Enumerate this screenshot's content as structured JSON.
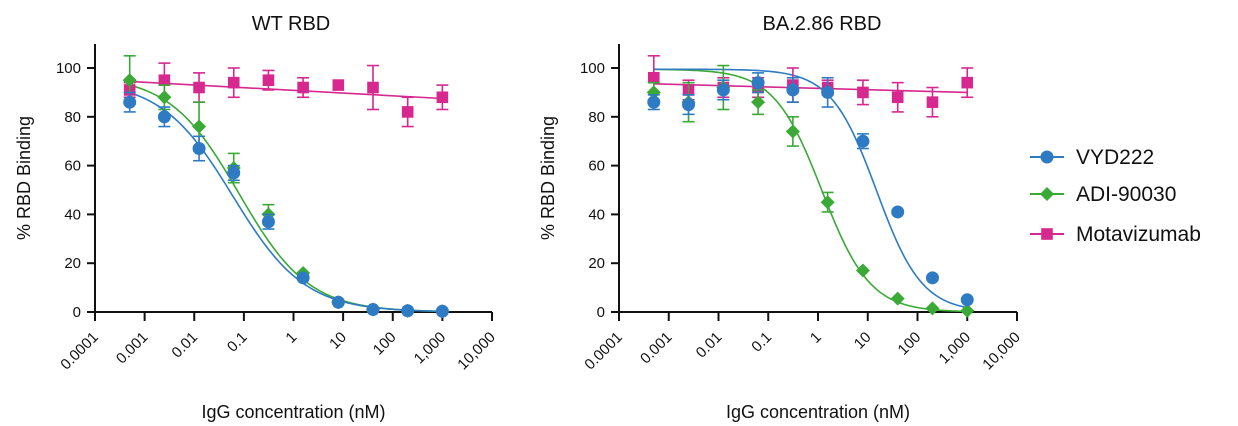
{
  "chart_data": [
    {
      "type": "scatter",
      "title": "WT RBD",
      "xlabel": "IgG concentration (nM)",
      "ylabel": "% RBD Binding",
      "xscale": "log",
      "xlim": [
        0.0001,
        10000
      ],
      "ylim": [
        0,
        110
      ],
      "xticks": [
        0.0001,
        0.001,
        0.01,
        0.1,
        1,
        10,
        100,
        1000,
        10000
      ],
      "xtick_labels": [
        "0.0001",
        "0.001",
        "0.01",
        "0.1",
        "1",
        "10",
        "100",
        "1,000",
        "10,000"
      ],
      "yticks": [
        0,
        20,
        40,
        60,
        80,
        100
      ],
      "ytick_labels": [
        "0",
        "20",
        "40",
        "60",
        "80",
        "100"
      ],
      "grid": false,
      "series": [
        {
          "name": "VYD222",
          "color": "#2e7bc4",
          "marker": "circle",
          "points": [
            {
              "x": 0.0005,
              "y": 86,
              "err": 4
            },
            {
              "x": 0.0025,
              "y": 80,
              "err": 4
            },
            {
              "x": 0.0125,
              "y": 67,
              "err": 5
            },
            {
              "x": 0.0625,
              "y": 57,
              "err": 3
            },
            {
              "x": 0.3125,
              "y": 37,
              "err": 3
            },
            {
              "x": 1.5625,
              "y": 14,
              "err": 1
            },
            {
              "x": 8,
              "y": 4,
              "err": 1
            },
            {
              "x": 40,
              "y": 1,
              "err": 0.5
            },
            {
              "x": 200,
              "y": 0.5,
              "err": 0.5
            },
            {
              "x": 1000,
              "y": 0.3,
              "err": 0.3
            }
          ],
          "fit": {
            "top": 95,
            "bottom": 0,
            "ic50": 0.06,
            "hill": 0.6
          }
        },
        {
          "name": "ADI-90030",
          "color": "#3aa935",
          "marker": "diamond",
          "points": [
            {
              "x": 0.0005,
              "y": 95,
              "err": 10
            },
            {
              "x": 0.0025,
              "y": 88,
              "err": 5
            },
            {
              "x": 0.0125,
              "y": 76,
              "err": 10
            },
            {
              "x": 0.0625,
              "y": 59,
              "err": 6
            },
            {
              "x": 0.3125,
              "y": 40,
              "err": 4
            },
            {
              "x": 1.5625,
              "y": 16,
              "err": 2
            },
            {
              "x": 8,
              "y": 4,
              "err": 1
            },
            {
              "x": 40,
              "y": 1,
              "err": 0.5
            },
            {
              "x": 200,
              "y": 0.5,
              "err": 0.5
            },
            {
              "x": 1000,
              "y": 0.3,
              "err": 0.3
            }
          ],
          "fit": {
            "top": 97,
            "bottom": 0,
            "ic50": 0.08,
            "hill": 0.62
          }
        },
        {
          "name": "Motavizumab",
          "color": "#d6288e",
          "marker": "square",
          "points": [
            {
              "x": 0.0005,
              "y": 91,
              "err": 3
            },
            {
              "x": 0.0025,
              "y": 95,
              "err": 7
            },
            {
              "x": 0.0125,
              "y": 92,
              "err": 6
            },
            {
              "x": 0.0625,
              "y": 94,
              "err": 6
            },
            {
              "x": 0.3125,
              "y": 95,
              "err": 4
            },
            {
              "x": 1.5625,
              "y": 92,
              "err": 4
            },
            {
              "x": 8,
              "y": 93,
              "err": 2
            },
            {
              "x": 40,
              "y": 92,
              "err": 9
            },
            {
              "x": 200,
              "y": 82,
              "err": 6
            },
            {
              "x": 1000,
              "y": 88,
              "err": 5
            }
          ],
          "fit_line": {
            "y_start": 94.5,
            "y_end": 87.5
          }
        }
      ]
    },
    {
      "type": "scatter",
      "title": "BA.2.86 RBD",
      "xlabel": "IgG concentration (nM)",
      "ylabel": "% RBD Binding",
      "xscale": "log",
      "xlim": [
        0.0001,
        10000
      ],
      "ylim": [
        0,
        110
      ],
      "xticks": [
        0.0001,
        0.001,
        0.01,
        0.1,
        1,
        10,
        100,
        1000,
        10000
      ],
      "xtick_labels": [
        "0.0001",
        "0.001",
        "0.01",
        "0.1",
        "1",
        "10",
        "100",
        "1,000",
        "10,000"
      ],
      "yticks": [
        0,
        20,
        40,
        60,
        80,
        100
      ],
      "ytick_labels": [
        "0",
        "20",
        "40",
        "60",
        "80",
        "100"
      ],
      "grid": false,
      "series": [
        {
          "name": "VYD222",
          "color": "#2e7bc4",
          "marker": "circle",
          "points": [
            {
              "x": 0.0005,
              "y": 86,
              "err": 3
            },
            {
              "x": 0.0025,
              "y": 85,
              "err": 4
            },
            {
              "x": 0.0125,
              "y": 91,
              "err": 4
            },
            {
              "x": 0.0625,
              "y": 94,
              "err": 4
            },
            {
              "x": 0.3125,
              "y": 91,
              "err": 5
            },
            {
              "x": 1.5625,
              "y": 90,
              "err": 6
            },
            {
              "x": 8,
              "y": 70,
              "err": 3
            },
            {
              "x": 40,
              "y": 41,
              "err": 1
            },
            {
              "x": 200,
              "y": 14,
              "err": 1
            },
            {
              "x": 1000,
              "y": 5,
              "err": 1
            }
          ],
          "fit": {
            "top": 99.5,
            "bottom": 0,
            "ic50": 15,
            "hill": 0.95
          }
        },
        {
          "name": "ADI-90030",
          "color": "#3aa935",
          "marker": "diamond",
          "points": [
            {
              "x": 0.0005,
              "y": 90,
              "err": 4
            },
            {
              "x": 0.0025,
              "y": 86,
              "err": 8
            },
            {
              "x": 0.0125,
              "y": 92,
              "err": 9
            },
            {
              "x": 0.0625,
              "y": 86,
              "err": 5
            },
            {
              "x": 0.3125,
              "y": 74,
              "err": 6
            },
            {
              "x": 1.5625,
              "y": 45,
              "err": 4
            },
            {
              "x": 8,
              "y": 17,
              "err": 1
            },
            {
              "x": 40,
              "y": 5.5,
              "err": 0.5
            },
            {
              "x": 200,
              "y": 1.5,
              "err": 0.5
            },
            {
              "x": 1000,
              "y": 0.5,
              "err": 0.3
            }
          ],
          "fit": {
            "top": 99.5,
            "bottom": 0,
            "ic50": 1.2,
            "hill": 0.9
          }
        },
        {
          "name": "Motavizumab",
          "color": "#d6288e",
          "marker": "square",
          "points": [
            {
              "x": 0.0005,
              "y": 96,
              "err": 9
            },
            {
              "x": 0.0025,
              "y": 91,
              "err": 4
            },
            {
              "x": 0.0125,
              "y": 92,
              "err": 4
            },
            {
              "x": 0.0625,
              "y": 92,
              "err": 4
            },
            {
              "x": 0.3125,
              "y": 93,
              "err": 7
            },
            {
              "x": 1.5625,
              "y": 92,
              "err": 3
            },
            {
              "x": 8,
              "y": 90,
              "err": 5
            },
            {
              "x": 40,
              "y": 88,
              "err": 6
            },
            {
              "x": 200,
              "y": 86,
              "err": 6
            },
            {
              "x": 1000,
              "y": 94,
              "err": 6
            }
          ],
          "fit_line": {
            "y_start": 93.5,
            "y_end": 90
          }
        }
      ]
    }
  ],
  "legend": {
    "placement": "right",
    "items": [
      {
        "label": "VYD222",
        "color": "#2e7bc4",
        "marker": "circle"
      },
      {
        "label": "ADI-90030",
        "color": "#3aa935",
        "marker": "diamond"
      },
      {
        "label": "Motavizumab",
        "color": "#d6288e",
        "marker": "square"
      }
    ]
  }
}
